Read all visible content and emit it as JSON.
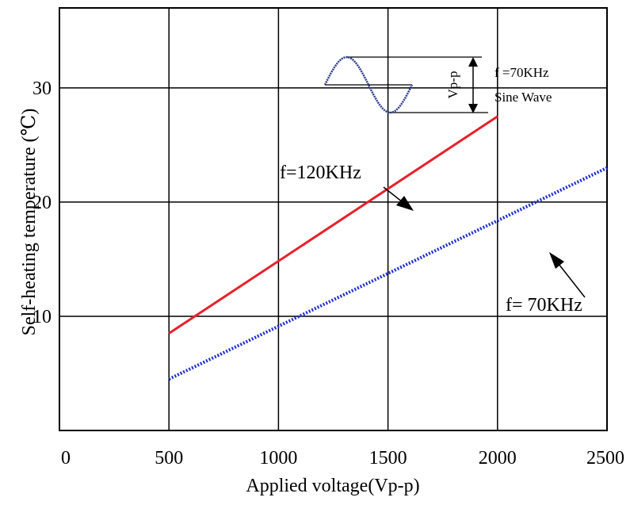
{
  "chart_data": {
    "type": "line",
    "title": "",
    "xlabel": "Applied voltage(Vp-p)",
    "ylabel": "Self-heating temperature (℃)",
    "xlim": [
      0,
      2500
    ],
    "ylim": [
      0,
      37
    ],
    "x_ticks": [
      "0",
      "500",
      "1000",
      "1500",
      "2000",
      "2500"
    ],
    "y_ticks": [
      "10",
      "20",
      "30"
    ],
    "grid": true,
    "series": [
      {
        "name": "f=120KHz",
        "color": "#e8202a",
        "style": "solid",
        "x": [
          500,
          2000
        ],
        "y": [
          8.5,
          27.5
        ]
      },
      {
        "name": "f= 70KHz",
        "color": "#1f2fd0",
        "style": "dotted",
        "x": [
          500,
          2500
        ],
        "y": [
          4.5,
          23.0
        ]
      }
    ],
    "inset": {
      "freq_label": "f =70KHz",
      "wave_label": "Sine Wave",
      "amp_label": "Vp-p",
      "wave_color": "#2a3a8a"
    }
  }
}
